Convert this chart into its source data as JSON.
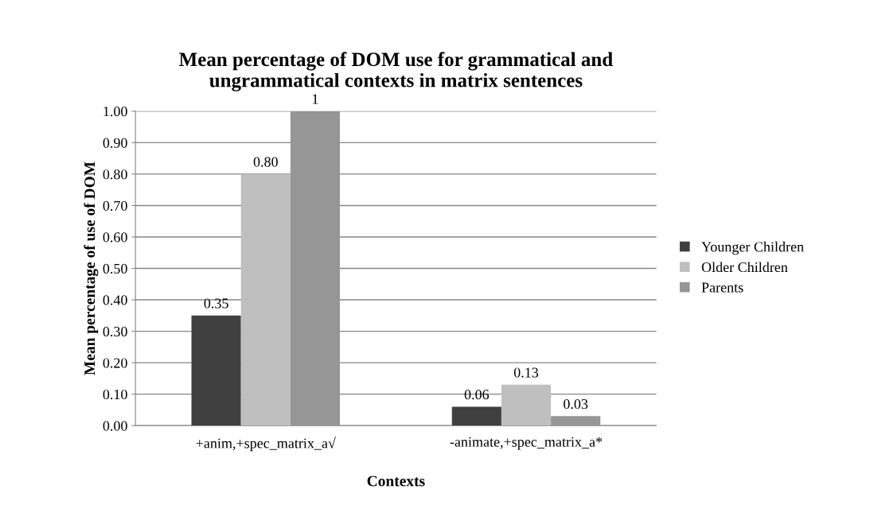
{
  "chart_data": {
    "type": "bar",
    "title": "Mean percentage of DOM use for grammatical and\nungrammatical contexts in matrix sentences",
    "xlabel": "Contexts",
    "ylabel": "Mean percentage of use of DOM",
    "categories": [
      "+anim,+spec_matrix_a√",
      "-animate,+spec_matrix_a*"
    ],
    "series": [
      {
        "name": "Younger Children",
        "color": "#404040",
        "values": [
          0.35,
          0.06
        ],
        "value_labels": [
          "0.35",
          "0.06"
        ]
      },
      {
        "name": "Older Children",
        "color": "#bfbfbf",
        "values": [
          0.8,
          0.13
        ],
        "value_labels": [
          "0.80",
          "0.13"
        ]
      },
      {
        "name": "Parents",
        "color": "#969696",
        "values": [
          1,
          0.03
        ],
        "value_labels": [
          "1",
          "0.03"
        ]
      }
    ],
    "ylim": [
      0,
      1
    ],
    "yticks": [
      {
        "value": 0,
        "label": "0.00"
      },
      {
        "value": 0.1,
        "label": "0.10"
      },
      {
        "value": 0.2,
        "label": "0.20"
      },
      {
        "value": 0.3,
        "label": "0.30"
      },
      {
        "value": 0.4,
        "label": "0.40"
      },
      {
        "value": 0.5,
        "label": "0.50"
      },
      {
        "value": 0.6,
        "label": "0.60"
      },
      {
        "value": 0.7,
        "label": "0.70"
      },
      {
        "value": 0.8,
        "label": "0.80"
      },
      {
        "value": 0.9,
        "label": "0.90"
      },
      {
        "value": 1,
        "label": "1.00"
      }
    ],
    "grid": "y",
    "legend": "right"
  }
}
